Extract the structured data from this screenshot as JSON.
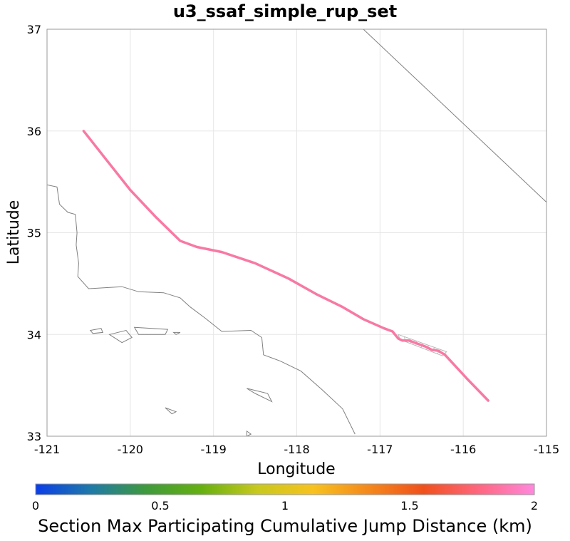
{
  "title": "u3_ssaf_simple_rup_set",
  "x_axis": {
    "label": "Longitude",
    "range": [
      -121,
      -115
    ],
    "ticks": [
      "-121",
      "-120",
      "-119",
      "-118",
      "-117",
      "-116",
      "-115"
    ]
  },
  "y_axis": {
    "label": "Latitude",
    "range": [
      33,
      37
    ],
    "ticks": [
      "33",
      "34",
      "35",
      "36",
      "37"
    ]
  },
  "colorbar": {
    "label": "Section Max Participating Cumulative Jump Distance (km)",
    "range": [
      0,
      2
    ],
    "ticks": [
      "0",
      "0.5",
      "1",
      "1.5",
      "2"
    ],
    "colors": [
      "#0b3ee8",
      "#1f7aa8",
      "#3f9a3c",
      "#66b010",
      "#c8c81e",
      "#f7c21e",
      "#f5881c",
      "#f0501c",
      "#ff6680",
      "#ff88dd"
    ]
  },
  "colors": {
    "fault_trace": "#f879a3",
    "coastline": "#808080",
    "grid": "#e6e6e6",
    "frame": "#999999"
  },
  "fault_trace": [
    [
      -120.56,
      36.0
    ],
    [
      -120.3,
      35.73
    ],
    [
      -120.0,
      35.42
    ],
    [
      -119.7,
      35.16
    ],
    [
      -119.4,
      34.92
    ],
    [
      -119.2,
      34.86
    ],
    [
      -118.9,
      34.81
    ],
    [
      -118.5,
      34.7
    ],
    [
      -118.1,
      34.55
    ],
    [
      -117.75,
      34.39
    ],
    [
      -117.45,
      34.27
    ],
    [
      -117.2,
      34.15
    ],
    [
      -116.95,
      34.06
    ],
    [
      -116.85,
      34.03
    ],
    [
      -116.78,
      33.96
    ],
    [
      -116.73,
      33.94
    ],
    [
      -116.65,
      33.94
    ],
    [
      -116.55,
      33.91
    ],
    [
      -116.45,
      33.88
    ],
    [
      -116.38,
      33.85
    ],
    [
      -116.3,
      33.84
    ],
    [
      -116.22,
      33.8
    ],
    [
      -115.96,
      33.57
    ],
    [
      -115.7,
      33.35
    ]
  ],
  "coastline": [
    [
      -121.0,
      35.47
    ],
    [
      -120.88,
      35.45
    ],
    [
      -120.85,
      35.28
    ],
    [
      -120.75,
      35.2
    ],
    [
      -120.66,
      35.18
    ],
    [
      -120.64,
      35.0
    ],
    [
      -120.65,
      34.88
    ],
    [
      -120.62,
      34.7
    ],
    [
      -120.63,
      34.57
    ],
    [
      -120.5,
      34.45
    ],
    [
      -120.1,
      34.47
    ],
    [
      -119.9,
      34.42
    ],
    [
      -119.6,
      34.41
    ],
    [
      -119.4,
      34.36
    ],
    [
      -119.28,
      34.27
    ],
    [
      -119.1,
      34.16
    ],
    [
      -118.9,
      34.03
    ],
    [
      -118.55,
      34.04
    ],
    [
      -118.42,
      33.97
    ],
    [
      -118.4,
      33.8
    ],
    [
      -118.2,
      33.74
    ],
    [
      -117.95,
      33.64
    ],
    [
      -117.7,
      33.46
    ],
    [
      -117.45,
      33.27
    ],
    [
      -117.3,
      33.02
    ]
  ],
  "islands": [
    [
      [
        -120.48,
        34.04
      ],
      [
        -120.35,
        34.06
      ],
      [
        -120.33,
        34.02
      ],
      [
        -120.45,
        34.01
      ],
      [
        -120.48,
        34.04
      ]
    ],
    [
      [
        -120.25,
        34.0
      ],
      [
        -120.05,
        34.04
      ],
      [
        -119.98,
        33.97
      ],
      [
        -120.1,
        33.92
      ],
      [
        -120.25,
        34.0
      ]
    ],
    [
      [
        -119.95,
        34.07
      ],
      [
        -119.55,
        34.05
      ],
      [
        -119.58,
        34.0
      ],
      [
        -119.9,
        34.0
      ],
      [
        -119.95,
        34.07
      ]
    ],
    [
      [
        -119.48,
        34.02
      ],
      [
        -119.4,
        34.02
      ],
      [
        -119.45,
        34.0
      ],
      [
        -119.48,
        34.02
      ]
    ],
    [
      [
        -118.6,
        33.47
      ],
      [
        -118.35,
        33.42
      ],
      [
        -118.3,
        33.34
      ],
      [
        -118.5,
        33.42
      ],
      [
        -118.6,
        33.47
      ]
    ],
    [
      [
        -119.58,
        33.28
      ],
      [
        -119.45,
        33.24
      ],
      [
        -119.5,
        33.22
      ],
      [
        -119.58,
        33.28
      ]
    ],
    [
      [
        -118.6,
        33.05
      ],
      [
        -118.55,
        33.02
      ],
      [
        -118.6,
        33.0
      ],
      [
        -118.6,
        33.05
      ]
    ]
  ],
  "state_border": [
    [
      -117.2,
      37.0
    ],
    [
      -115.0,
      35.3
    ]
  ],
  "rupture_zone": [
    [
      -116.78,
      34.0
    ],
    [
      -116.2,
      33.83
    ],
    [
      -116.25,
      33.79
    ],
    [
      -116.76,
      33.95
    ]
  ]
}
